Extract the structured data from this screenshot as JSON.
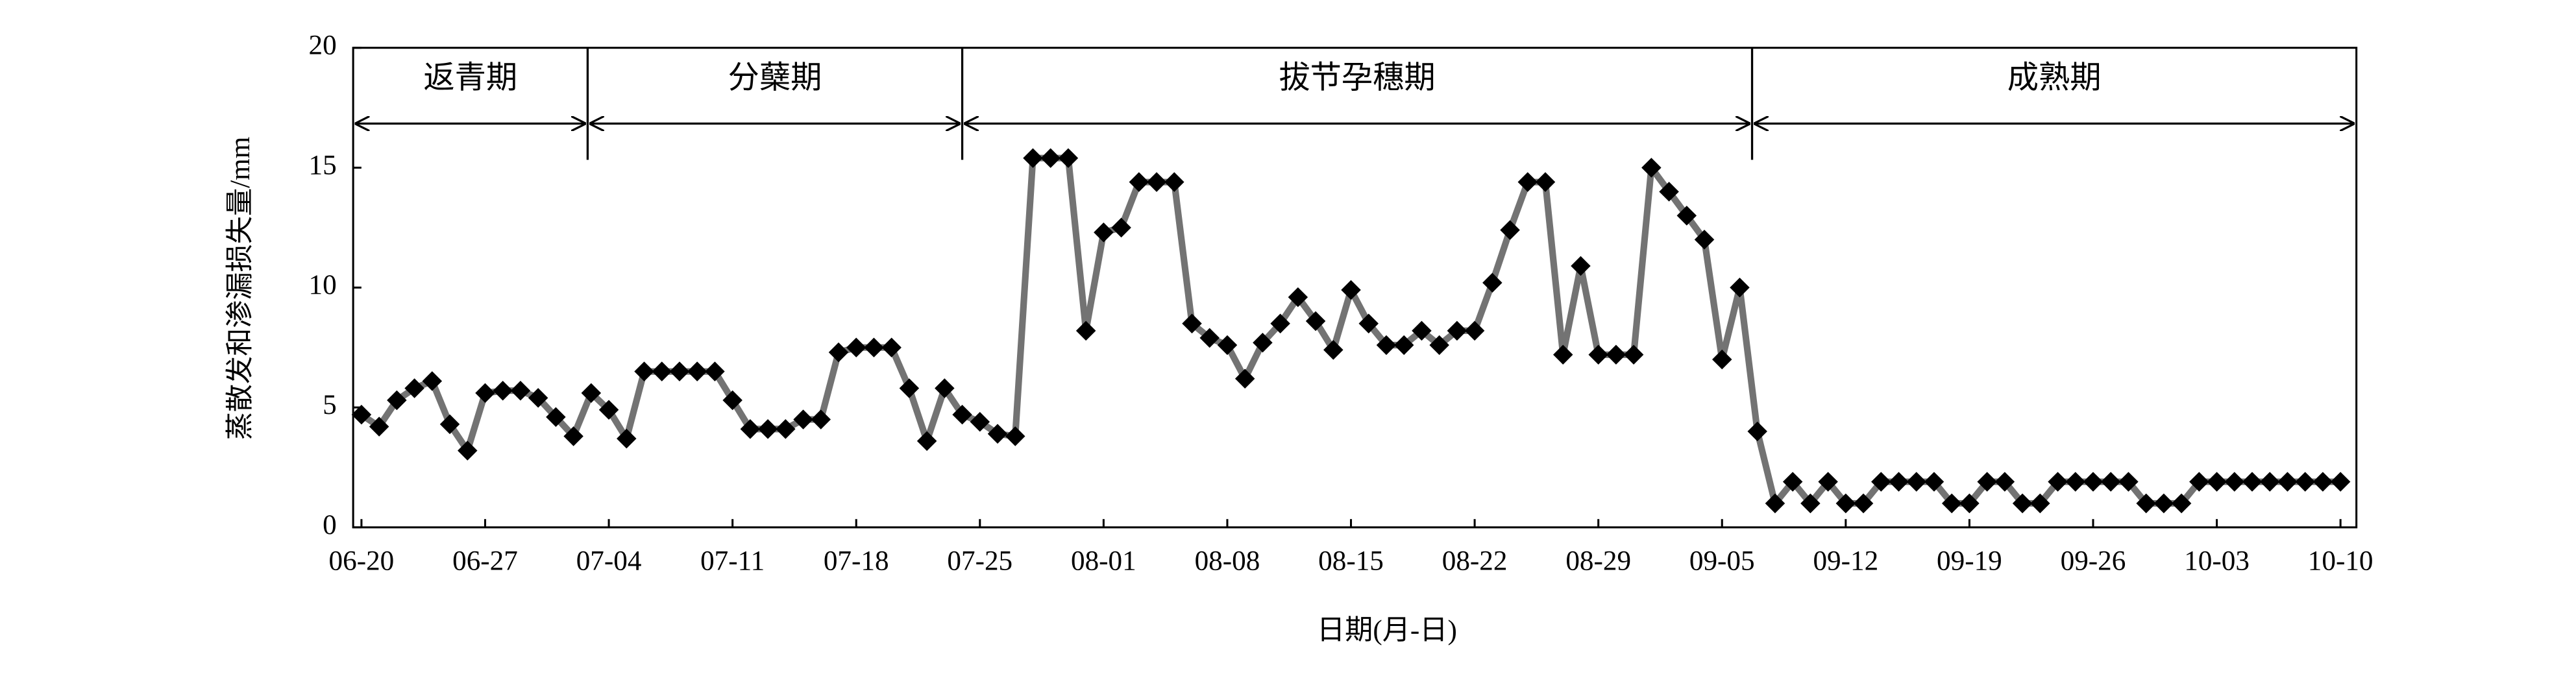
{
  "chart_data": {
    "type": "line",
    "xlabel": "日期(月-日)",
    "ylabel": "蒸散发和渗漏损失量/mm",
    "categories": [
      "06-20",
      null,
      null,
      null,
      null,
      null,
      null,
      "06-27",
      null,
      null,
      null,
      null,
      null,
      null,
      "07-04",
      null,
      null,
      null,
      null,
      null,
      null,
      "07-11",
      null,
      null,
      null,
      null,
      null,
      null,
      "07-18",
      null,
      null,
      null,
      null,
      null,
      null,
      "07-25",
      null,
      null,
      null,
      null,
      null,
      null,
      "08-01",
      null,
      null,
      null,
      null,
      null,
      null,
      "08-08",
      null,
      null,
      null,
      null,
      null,
      null,
      "08-15",
      null,
      null,
      null,
      null,
      null,
      null,
      "08-22",
      null,
      null,
      null,
      null,
      null,
      null,
      "08-29",
      null,
      null,
      null,
      null,
      null,
      null,
      "09-05",
      null,
      null,
      null,
      null,
      null,
      null,
      "09-12",
      null,
      null,
      null,
      null,
      null,
      null,
      "09-19",
      null,
      null,
      null,
      null,
      null,
      null,
      "09-26",
      null,
      null,
      null,
      null,
      null,
      null,
      "10-03",
      null,
      null,
      null,
      null,
      null,
      null,
      "10-10"
    ],
    "series": [
      {
        "color": "#737373",
        "marker_color": "#000000",
        "values": [
          4.7,
          4.2,
          5.3,
          5.8,
          6.1,
          4.3,
          3.2,
          5.6,
          5.7,
          5.7,
          5.4,
          4.6,
          3.8,
          5.6,
          4.9,
          3.7,
          6.5,
          6.5,
          6.5,
          6.5,
          6.5,
          5.3,
          4.1,
          4.1,
          4.1,
          4.5,
          4.5,
          7.3,
          7.5,
          7.5,
          7.5,
          5.8,
          3.6,
          5.8,
          4.7,
          4.4,
          3.9,
          3.8,
          15.4,
          15.4,
          15.4,
          8.2,
          12.3,
          12.5,
          14.4,
          14.4,
          14.4,
          8.5,
          7.9,
          7.6,
          6.2,
          7.7,
          8.5,
          9.6,
          8.6,
          7.4,
          9.9,
          8.5,
          7.6,
          7.6,
          8.2,
          7.6,
          8.2,
          8.2,
          10.2,
          12.4,
          14.4,
          14.4,
          7.2,
          10.9,
          7.2,
          7.2,
          7.2,
          15.0,
          14.0,
          13.0,
          12.0,
          7.0,
          10.0,
          4.0,
          1.0,
          1.9,
          1.0,
          1.9,
          1.0,
          1.0,
          1.9,
          1.9,
          1.9,
          1.9,
          1.0,
          1.0,
          1.9,
          1.9,
          1.0,
          1.0,
          1.9,
          1.9,
          1.9,
          1.9,
          1.9,
          1.0,
          1.0,
          1.0,
          1.9,
          1.9,
          1.9,
          1.9,
          1.9,
          1.9,
          1.9,
          1.9,
          1.9
        ]
      }
    ],
    "phases": [
      "返青期",
      "分蘖期",
      "拔节孕穗期",
      "成熟期"
    ],
    "phase_bounds": [
      12.8,
      34.0,
      78.7
    ],
    "ylim": [
      0,
      20
    ],
    "yticks": [
      0,
      5,
      10,
      15,
      20
    ],
    "grid": false
  }
}
